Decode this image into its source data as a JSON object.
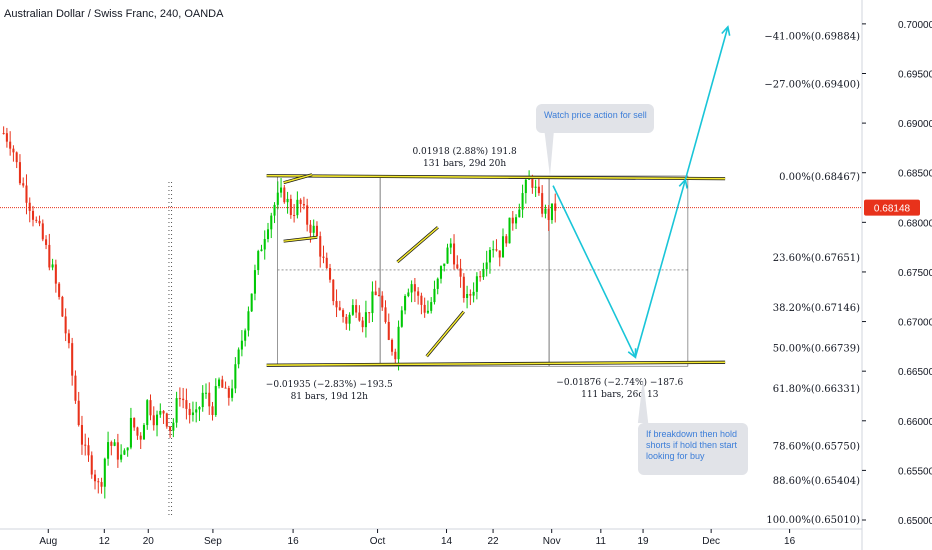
{
  "title": "Australian Dollar / Swiss Franc, 240, OANDA",
  "current_price": "0.68148",
  "colors": {
    "up": "#26a69a",
    "bull_candle": "#00c805",
    "bear_candle": "#e8321b",
    "channel": "#f5ea30",
    "arrow": "#19c5d8",
    "price_line": "#e8321b",
    "price_badge": "#e8321b",
    "callout_bg": "#e1e3e8",
    "callout_text": "#3b7dd8"
  },
  "callouts": {
    "top": "Watch price action for sell",
    "bottom": "If breakdown then hold shorts if hold then start looking for buy"
  },
  "measurements": {
    "top_range": "0.01918 (2.88%) 191.8",
    "top_bars": "131 bars, 29d 20h",
    "left_range": "−0.01935 (−2.83%) −193.5",
    "left_bars": "81 bars, 19d 12h",
    "right_range": "−0.01876 (−2.74%) −187.6",
    "right_bars": "111 bars, 26d 13"
  },
  "chart_data": {
    "type": "candlestick",
    "title": "Australian Dollar / Swiss Franc, 240, OANDA",
    "x_ticks": [
      "Aug",
      "12",
      "20",
      "Sep",
      "16",
      "Oct",
      "14",
      "22",
      "Nov",
      "11",
      "19",
      "Dec",
      "16"
    ],
    "y_ticks": [
      "0.70000",
      "0.69500",
      "0.69000",
      "0.68500",
      "0.68000",
      "0.67500",
      "0.67000",
      "0.66500",
      "0.66000",
      "0.65500",
      "0.65000"
    ],
    "ylim": [
      0.6498,
      0.7016
    ],
    "fib_levels": [
      {
        "label": "−41.00%(0.69884)",
        "value": 0.69884
      },
      {
        "label": "−27.00%(0.69400)",
        "value": 0.694
      },
      {
        "label": "0.00%(0.68467)",
        "value": 0.68467
      },
      {
        "label": "23.60%(0.67651)",
        "value": 0.67651
      },
      {
        "label": "38.20%(0.67146)",
        "value": 0.67146
      },
      {
        "label": "50.00%(0.66739)",
        "value": 0.66739
      },
      {
        "label": "61.80%(0.66331)",
        "value": 0.66331
      },
      {
        "label": "78.60%(0.65750)",
        "value": 0.6575
      },
      {
        "label": "88.60%(0.65404)",
        "value": 0.65404
      },
      {
        "label": "100.00%(0.65010)",
        "value": 0.6501
      }
    ],
    "current_price": 0.68148,
    "price_path": [
      [
        0,
        0.689
      ],
      [
        2,
        0.688
      ],
      [
        4,
        0.6845
      ],
      [
        6,
        0.6825
      ],
      [
        8,
        0.68
      ],
      [
        10,
        0.678
      ],
      [
        12,
        0.6755
      ],
      [
        14,
        0.672
      ],
      [
        16,
        0.668
      ],
      [
        18,
        0.662
      ],
      [
        20,
        0.657
      ],
      [
        22,
        0.6555
      ],
      [
        24,
        0.653
      ],
      [
        26,
        0.658
      ],
      [
        28,
        0.657
      ],
      [
        30,
        0.656
      ],
      [
        32,
        0.66
      ],
      [
        34,
        0.658
      ],
      [
        36,
        0.662
      ],
      [
        38,
        0.66
      ],
      [
        40,
        0.661
      ],
      [
        42,
        0.659
      ],
      [
        44,
        0.663
      ],
      [
        46,
        0.661
      ],
      [
        48,
        0.66
      ],
      [
        50,
        0.663
      ],
      [
        52,
        0.661
      ],
      [
        54,
        0.664
      ],
      [
        56,
        0.662
      ],
      [
        58,
        0.665
      ],
      [
        60,
        0.669
      ],
      [
        62,
        0.673
      ],
      [
        64,
        0.677
      ],
      [
        66,
        0.68
      ],
      [
        68,
        0.682
      ],
      [
        70,
        0.683
      ],
      [
        72,
        0.681
      ],
      [
        74,
        0.682
      ],
      [
        76,
        0.68
      ],
      [
        78,
        0.679
      ],
      [
        80,
        0.676
      ],
      [
        82,
        0.673
      ],
      [
        84,
        0.671
      ],
      [
        86,
        0.67
      ],
      [
        88,
        0.672
      ],
      [
        90,
        0.67
      ],
      [
        92,
        0.672
      ],
      [
        94,
        0.673
      ],
      [
        96,
        0.668
      ],
      [
        98,
        0.667
      ],
      [
        100,
        0.673
      ],
      [
        102,
        0.674
      ],
      [
        104,
        0.672
      ],
      [
        106,
        0.671
      ],
      [
        108,
        0.673
      ],
      [
        110,
        0.676
      ],
      [
        112,
        0.678
      ],
      [
        114,
        0.674
      ],
      [
        116,
        0.672
      ],
      [
        118,
        0.674
      ],
      [
        120,
        0.676
      ],
      [
        122,
        0.678
      ],
      [
        124,
        0.677
      ],
      [
        126,
        0.679
      ],
      [
        128,
        0.681
      ],
      [
        130,
        0.683
      ],
      [
        132,
        0.6845
      ],
      [
        134,
        0.682
      ],
      [
        136,
        0.6805
      ],
      [
        138,
        0.6815
      ]
    ],
    "channel": {
      "upper": [
        [
          0.3093,
          0.6847
        ],
        [
          0.8412,
          0.6844
        ]
      ],
      "lower": [
        [
          0.3093,
          0.6656
        ],
        [
          0.8412,
          0.6659
        ]
      ]
    },
    "projection_path": [
      [
        0.6416,
        0.6837
      ],
      [
        0.7371,
        0.6664
      ],
      [
        0.7951,
        0.6843
      ],
      [
        0.8444,
        0.6997
      ]
    ]
  }
}
